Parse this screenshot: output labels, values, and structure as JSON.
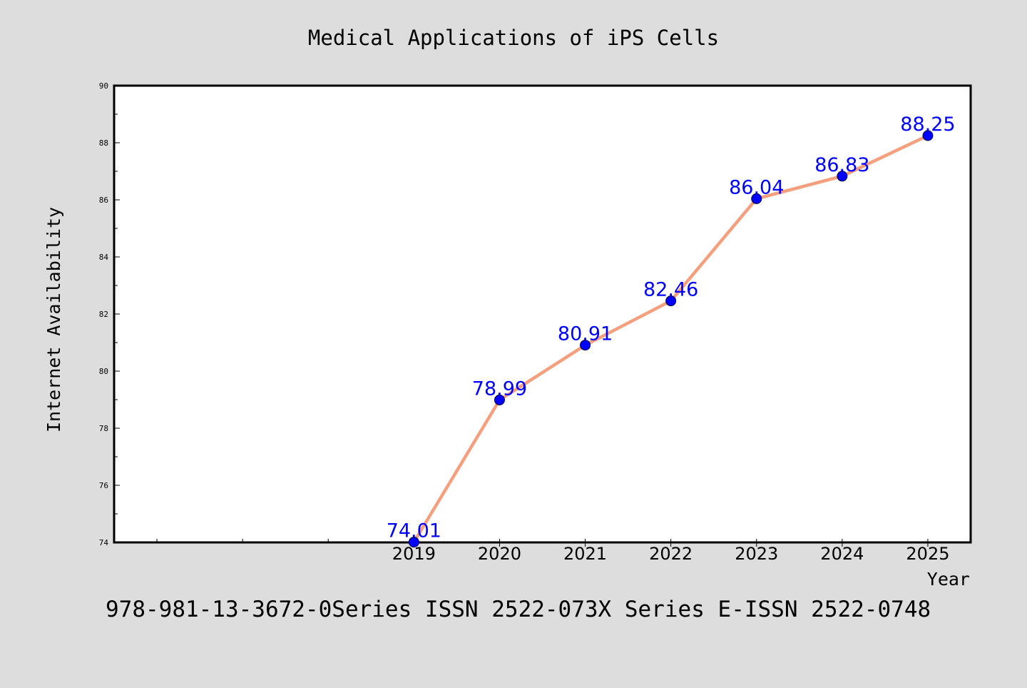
{
  "chart_data": {
    "type": "line",
    "title": "Medical Applications of iPS Cells",
    "xlabel": "Year",
    "ylabel": "Internet Availability",
    "x": [
      2019,
      2020,
      2021,
      2022,
      2023,
      2024,
      2025
    ],
    "x_tick_labels": [
      "2019",
      "2020",
      "2021",
      "2022",
      "2023",
      "2024",
      "2025"
    ],
    "xlim": [
      2015.5,
      2025.5
    ],
    "ylim": [
      74,
      90
    ],
    "y_ticks": [
      74,
      76,
      78,
      80,
      82,
      84,
      86,
      88,
      90
    ],
    "y_tick_labels": [
      "74",
      "76",
      "78",
      "80",
      "82",
      "84",
      "86",
      "88",
      "90"
    ],
    "series": [
      {
        "values": [
          74.01,
          78.99,
          80.91,
          82.46,
          86.04,
          86.83,
          88.25
        ],
        "labels": [
          "74.01",
          "78.99",
          "80.91",
          "82.46",
          "86.04",
          "86.83",
          "88.25"
        ],
        "line_color": "#f4a07f",
        "marker_color": "#0000ff"
      }
    ],
    "data_label_color": "#0000ff",
    "grid": false,
    "legend": "none"
  },
  "footer": {
    "text": "978-981-13-3672-0Series ISSN 2522-073X Series E-ISSN 2522-0748"
  }
}
